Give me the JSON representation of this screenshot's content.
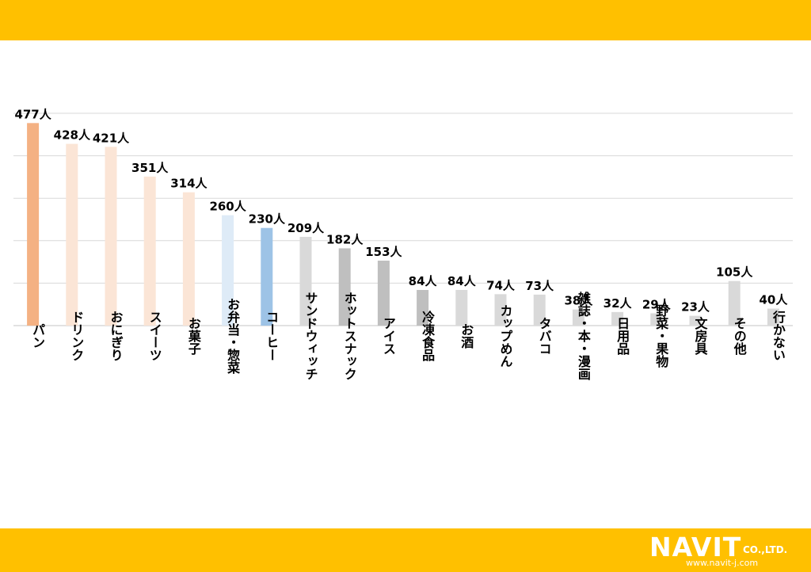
{
  "chart_data": {
    "type": "bar",
    "title": "",
    "xlabel": "",
    "ylabel": "",
    "ylim": [
      0,
      500
    ],
    "grid": true,
    "unit_suffix": "人",
    "categories": [
      "パン",
      "ドリンク",
      "おにぎり",
      "スイーツ",
      "お菓子",
      "お弁当・惣菜",
      "コーヒー",
      "サンドウィッチ",
      "ホットスナック",
      "アイス",
      "冷凍食品",
      "お酒",
      "カップめん",
      "タバコ",
      "雑誌・本・漫画",
      "日用品",
      "野菜・果物",
      "文房具",
      "その他",
      "行かない"
    ],
    "values": [
      477,
      428,
      421,
      351,
      314,
      260,
      230,
      209,
      182,
      153,
      84,
      84,
      74,
      73,
      38,
      32,
      29,
      23,
      105,
      40
    ],
    "value_labels": [
      "477人",
      "428人",
      "421人",
      "351人",
      "314人",
      "260人",
      "230人",
      "209人",
      "182人",
      "153人",
      "84人",
      "84人",
      "74人",
      "73人",
      "38人",
      "32人",
      "29人",
      "23人",
      "105人",
      "40人"
    ],
    "bar_colors": [
      "#F4B183",
      "#FBE5D6",
      "#FBE5D6",
      "#FBE5D6",
      "#FBE5D6",
      "#DEEBF7",
      "#9DC3E6",
      "#D9D9D9",
      "#BFBFBF",
      "#BFBFBF",
      "#BFBFBF",
      "#D9D9D9",
      "#D9D9D9",
      "#D9D9D9",
      "#D9D9D9",
      "#D9D9D9",
      "#D9D9D9",
      "#D9D9D9",
      "#D9D9D9",
      "#D9D9D9"
    ]
  },
  "logo": {
    "brand": "NAVIT",
    "suffix": "CO.,LTD.",
    "url": "www.navit-j.com"
  },
  "colors": {
    "banner": "#FFC000",
    "gridline": "#D9D9D9"
  }
}
